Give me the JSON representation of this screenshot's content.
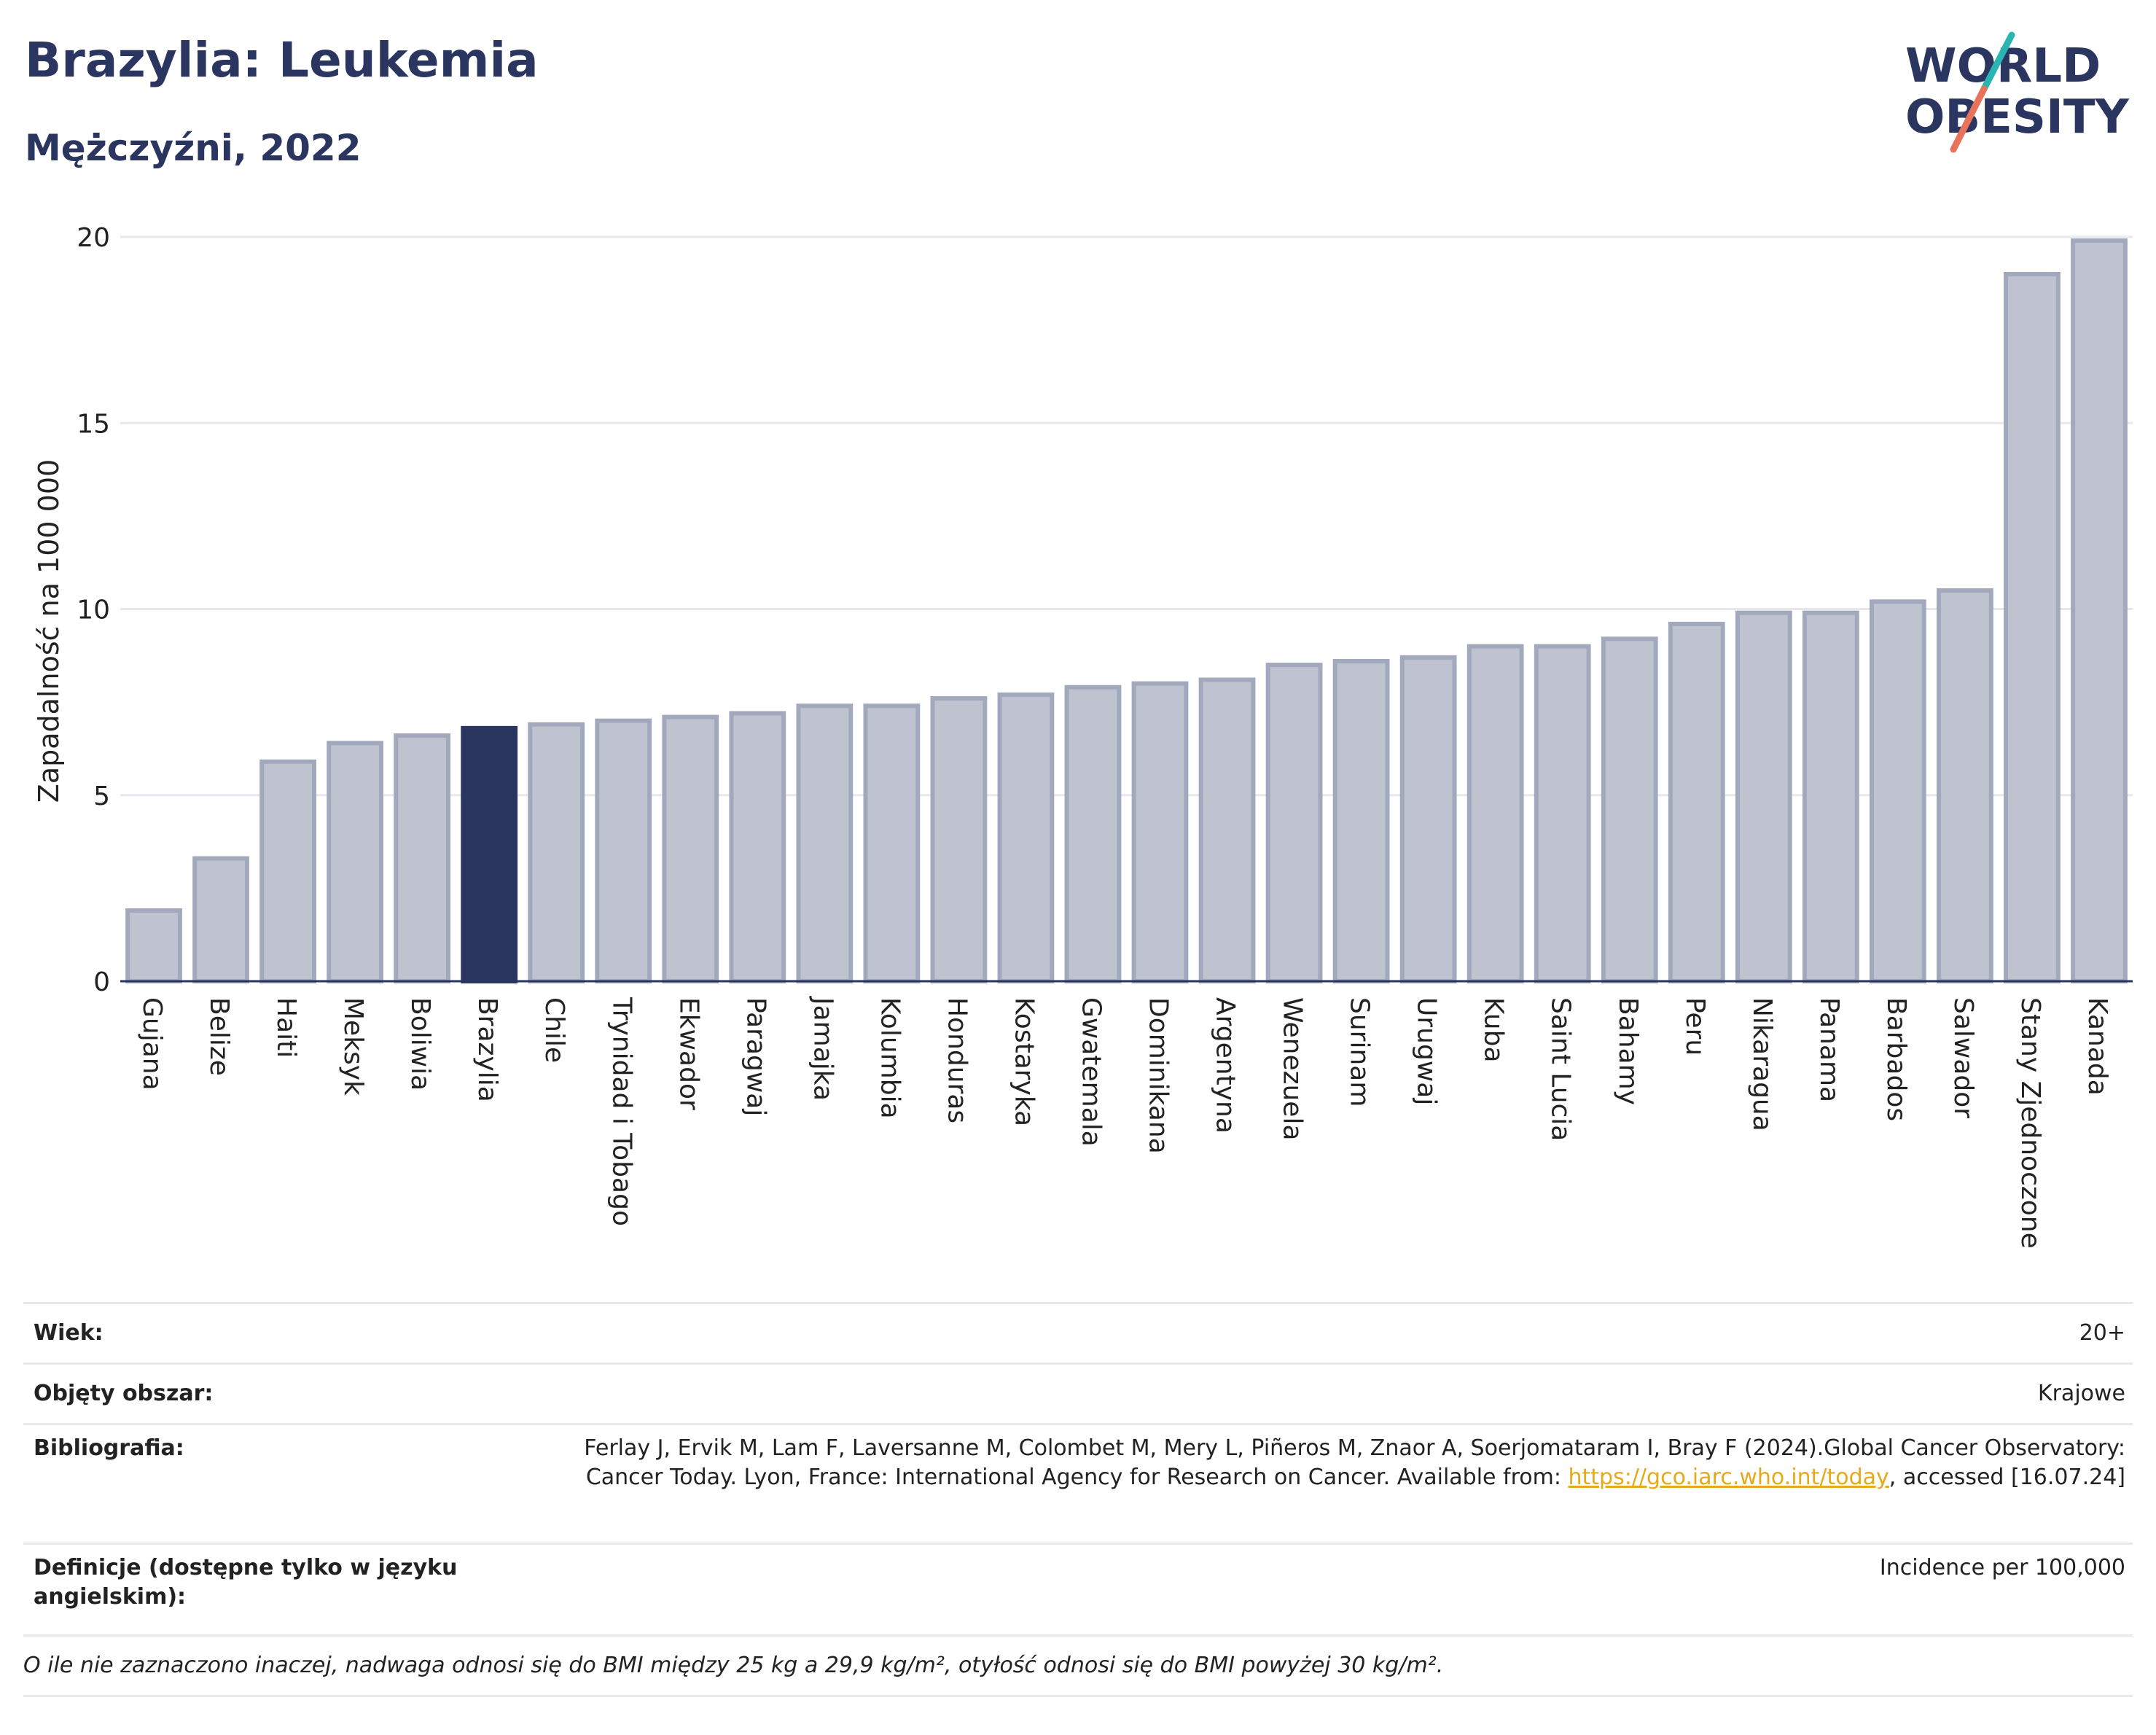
{
  "header": {
    "title": "Brazylia: Leukemia",
    "subtitle": "Mężczyźni, 2022"
  },
  "logo": {
    "line1": "WORLD",
    "line2": "OBESITY",
    "accent_colors": [
      "#2bb5b2",
      "#e8735a"
    ]
  },
  "colors": {
    "highlight": "#2a3560",
    "bar": "#bfc3d0",
    "bar_edge": "#a3a9bd",
    "grid": "#e6e8ee",
    "text": "#2a3560"
  },
  "chart_data": {
    "type": "bar",
    "title": "",
    "ylabel": "Zapadalność na 100 000",
    "ylim": [
      0,
      20
    ],
    "yticks": [
      0,
      5,
      10,
      15,
      20
    ],
    "highlight": "Brazylia",
    "categories": [
      "Gujana",
      "Belize",
      "Haiti",
      "Meksyk",
      "Boliwia",
      "Brazylia",
      "Chile",
      "Trynidad i Tobago",
      "Ekwador",
      "Paragwaj",
      "Jamajka",
      "Kolumbia",
      "Honduras",
      "Kostaryka",
      "Gwatemala",
      "Dominikana",
      "Argentyna",
      "Wenezuela",
      "Surinam",
      "Urugwaj",
      "Kuba",
      "Saint Lucia",
      "Bahamy",
      "Peru",
      "Nikaragua",
      "Panama",
      "Barbados",
      "Salwador",
      "Stany Zjednoczone",
      "Kanada"
    ],
    "values": [
      1.9,
      3.3,
      5.9,
      6.4,
      6.6,
      6.8,
      6.9,
      7.0,
      7.1,
      7.2,
      7.4,
      7.4,
      7.6,
      7.7,
      7.9,
      8.0,
      8.1,
      8.5,
      8.6,
      8.7,
      9.0,
      9.0,
      9.2,
      9.6,
      9.9,
      9.9,
      10.2,
      10.5,
      19.0,
      19.9
    ]
  },
  "info": {
    "age_label": "Wiek:",
    "age_value": "20+",
    "coverage_label": "Objęty obszar:",
    "coverage_value": "Krajowe",
    "biblio_label": "Bibliografia:",
    "biblio_text": "Ferlay J, Ervik M, Lam F, Laversanne M, Colombet M, Mery L, Piñeros M, Znaor A, Soerjomataram I, Bray F (2024).Global Cancer Observatory: Cancer Today. Lyon, France: International Agency for Research on Cancer. Available from: ",
    "biblio_link": "https://gco.iarc.who.int/today",
    "biblio_tail": ", accessed [16.07.24]",
    "definitions_label": "Definicje (dostępne tylko w języku angielskim):",
    "definitions_value": "Incidence per 100,000",
    "footnote": "O ile nie zaznaczono inaczej, nadwaga odnosi się do BMI między 25 kg a 29,9 kg/m², otyłość odnosi się do BMI powyżej 30 kg/m²."
  }
}
